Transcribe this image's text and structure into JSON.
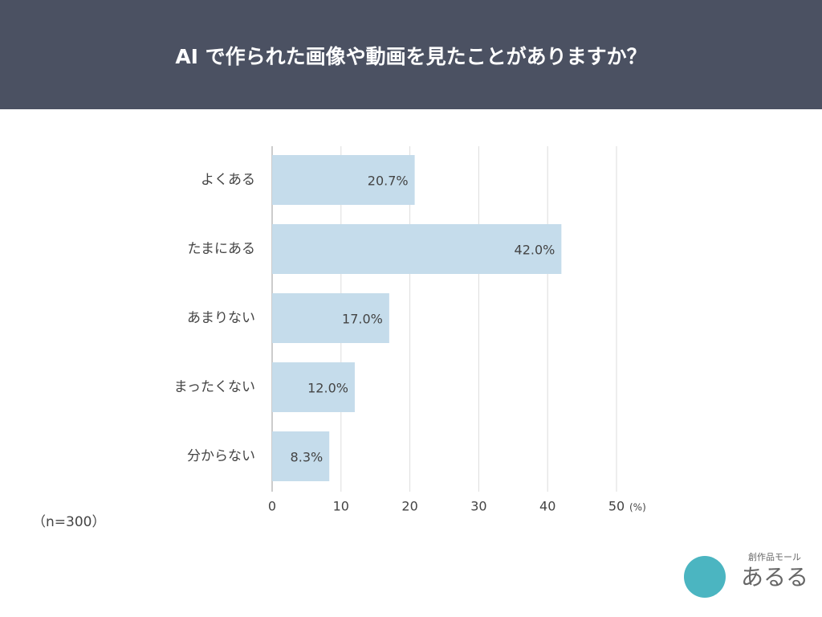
{
  "chart_data": {
    "type": "barh",
    "title": "AI で作られた画像や動画を見たことがありますか？",
    "categories": [
      "よくある",
      "たまにある",
      "あまりない",
      "まったくない",
      "分からない"
    ],
    "values": [
      20.7,
      42.0,
      17.0,
      12.0,
      8.3
    ],
    "value_labels": [
      "20.7%",
      "42.0%",
      "17.0%",
      "12.0%",
      "8.3%"
    ],
    "color": "#c5dceb",
    "xlim": [
      0,
      50
    ],
    "xticks": [
      0,
      10,
      20,
      30,
      40,
      50
    ],
    "x_unit": "(%)",
    "grid": true,
    "note": "（n=300）",
    "logo": {
      "tagline": "創作品モール",
      "name": "あるる"
    }
  }
}
